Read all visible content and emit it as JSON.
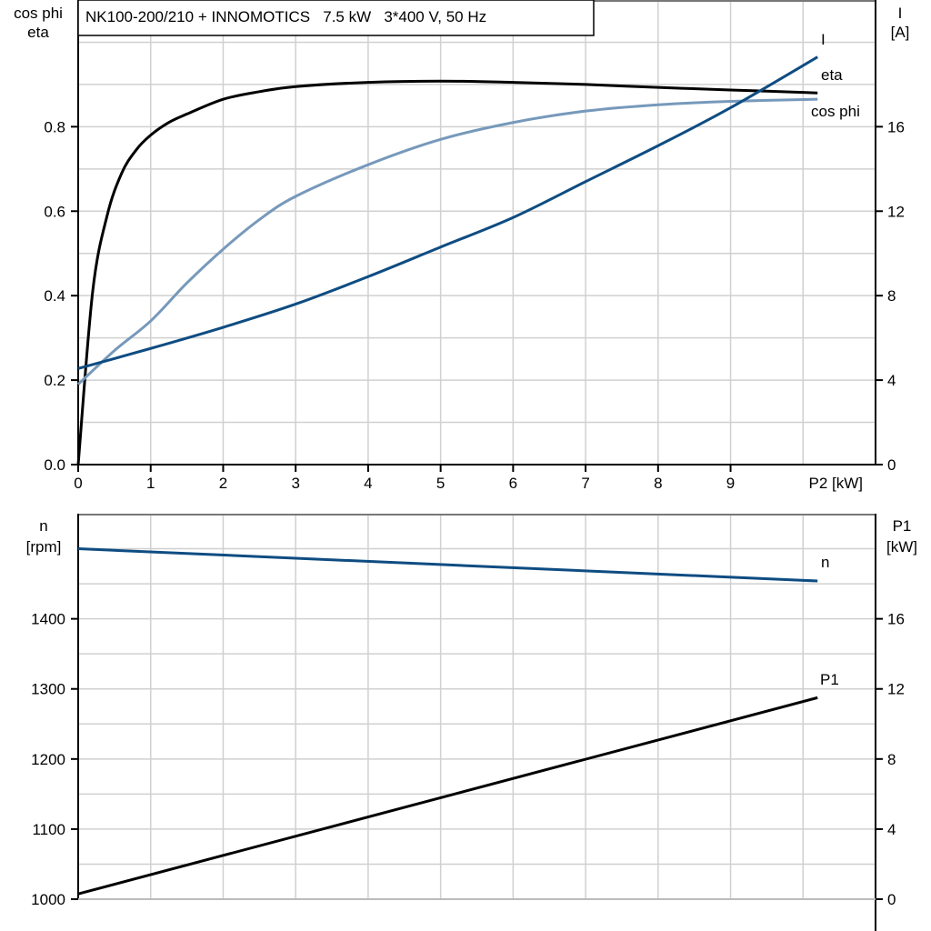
{
  "chart_data": [
    {
      "type": "line",
      "title": "NK100-200/210 + INNOMOTICS   7.5 kW   3*400 V, 50 Hz",
      "xlabel": "P2 [kW]",
      "ylabel_left": [
        "cos phi",
        "eta"
      ],
      "ylabel_right": [
        "I",
        "[A]"
      ],
      "xlim": [
        0,
        11
      ],
      "ylim_left": [
        0,
        1.1
      ],
      "ylim_right": [
        0,
        22
      ],
      "x_ticks": [
        0,
        1,
        2,
        3,
        4,
        5,
        6,
        7,
        8,
        9
      ],
      "x_tick_labels": [
        "0",
        "1",
        "2",
        "3",
        "4",
        "5",
        "6",
        "7",
        "8",
        "9"
      ],
      "y_left_ticks": [
        0,
        0.2,
        0.4,
        0.6,
        0.8
      ],
      "y_left_tick_labels": [
        "0.0",
        "0.2",
        "0.4",
        "0.6",
        "0.8"
      ],
      "y_right_ticks": [
        0,
        4,
        8,
        12,
        16
      ],
      "y_right_tick_labels": [
        "0",
        "4",
        "8",
        "12",
        "16"
      ],
      "grid": true,
      "series": [
        {
          "name": "eta",
          "axis": "left",
          "color": "#000000",
          "x": [
            0,
            0.2,
            0.4,
            0.6,
            0.8,
            1,
            1.25,
            1.5,
            2,
            2.5,
            3,
            4,
            5,
            6,
            7,
            8,
            9,
            10.2
          ],
          "y": [
            0,
            0.41,
            0.59,
            0.69,
            0.745,
            0.78,
            0.81,
            0.83,
            0.865,
            0.883,
            0.895,
            0.905,
            0.908,
            0.905,
            0.9,
            0.893,
            0.887,
            0.88
          ]
        },
        {
          "name": "cos phi",
          "axis": "left",
          "color": "#7699bb",
          "x": [
            0,
            0.5,
            1,
            1.5,
            2,
            2.5,
            3,
            4,
            5,
            6,
            7,
            8,
            9,
            10.2
          ],
          "y": [
            0.19,
            0.27,
            0.34,
            0.43,
            0.51,
            0.58,
            0.635,
            0.71,
            0.77,
            0.81,
            0.837,
            0.852,
            0.86,
            0.865
          ]
        },
        {
          "name": "I",
          "axis": "right",
          "color": "#0e4c82",
          "x": [
            0,
            1,
            2,
            3,
            4,
            5,
            6,
            7,
            8,
            9,
            10.2
          ],
          "y": [
            4.55,
            5.5,
            6.5,
            7.6,
            8.9,
            10.3,
            11.7,
            13.4,
            15.1,
            16.9,
            19.3
          ]
        }
      ]
    },
    {
      "type": "line",
      "xlim": [
        0,
        11
      ],
      "ylabel_left": [
        "n",
        "[rpm]"
      ],
      "ylabel_right": [
        "P1",
        "[kW]"
      ],
      "ylim_left": [
        1000,
        1550
      ],
      "ylim_right": [
        0,
        22
      ],
      "y_left_ticks": [
        1000,
        1100,
        1200,
        1300,
        1400
      ],
      "y_left_tick_labels": [
        "1000",
        "1100",
        "1200",
        "1300",
        "1400"
      ],
      "y_right_ticks": [
        0,
        4,
        8,
        12,
        16
      ],
      "y_right_tick_labels": [
        "0",
        "4",
        "8",
        "12",
        "16"
      ],
      "grid": true,
      "series": [
        {
          "name": "n",
          "axis": "left",
          "color": "#0e4c82",
          "x": [
            0,
            10.2
          ],
          "y": [
            1500,
            1454
          ]
        },
        {
          "name": "P1",
          "axis": "right",
          "color": "#000000",
          "x": [
            0,
            10.2
          ],
          "y": [
            0.3,
            11.5
          ]
        }
      ]
    }
  ]
}
